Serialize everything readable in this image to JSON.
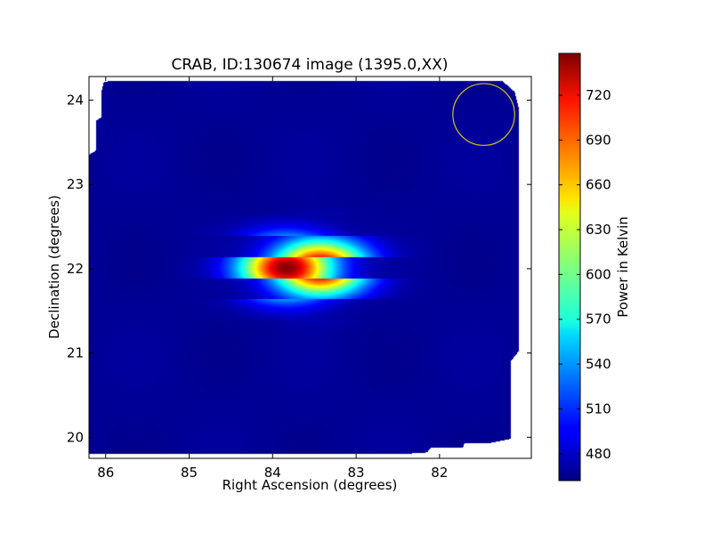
{
  "chart_data": {
    "type": "heatmap",
    "title": "CRAB, ID:130674 image (1395.0,XX)",
    "xlabel": "Right Ascension (degrees)",
    "ylabel": "Declination (degrees)",
    "xlim": [
      86.2,
      80.9
    ],
    "ylim": [
      19.75,
      24.28
    ],
    "x_ticks": [
      86,
      85,
      84,
      83,
      82
    ],
    "y_ticks": [
      20,
      21,
      22,
      23,
      24
    ],
    "x_tick_labels": [
      "86",
      "85",
      "84",
      "83",
      "82"
    ],
    "y_tick_labels": [
      "20",
      "21",
      "22",
      "23",
      "24"
    ],
    "grid": false,
    "colormap": "jet",
    "colorbar": {
      "label": "Power in Kelvin",
      "vmin": 462,
      "vmax": 748,
      "ticks": [
        480,
        510,
        540,
        570,
        600,
        630,
        660,
        690,
        720
      ],
      "tick_labels": [
        "480",
        "510",
        "540",
        "570",
        "600",
        "630",
        "660",
        "690",
        "720"
      ]
    },
    "background_level": 468,
    "source": {
      "ra": 83.63,
      "dec": 22.01,
      "peak": 748,
      "sigma_ra_deg": 0.38,
      "sigma_dec_deg": 0.23,
      "sidelobe_offset_deg": 0.2,
      "sidelobe_dec_spacing_deg": 0.25
    },
    "beam_marker": {
      "ra": 81.47,
      "dec": 23.83,
      "radius_deg": 0.37,
      "color": "#d4c419"
    }
  }
}
